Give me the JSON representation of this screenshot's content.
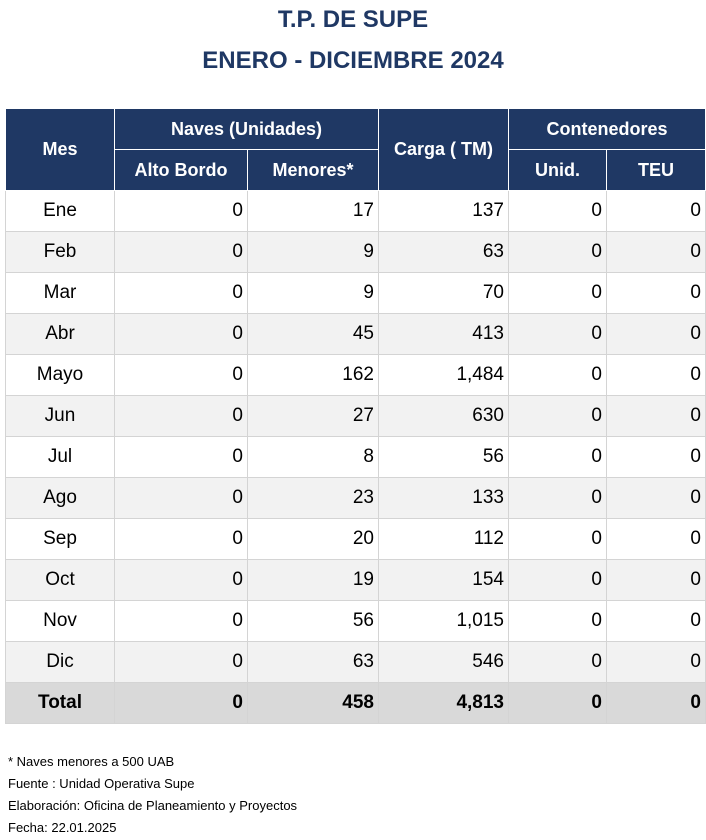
{
  "title": {
    "line1": "T.P. DE SUPE",
    "line2": "ENERO - DICIEMBRE 2024"
  },
  "headers": {
    "mes": "Mes",
    "naves": "Naves (Unidades)",
    "alto_bordo": "Alto Bordo",
    "menores": "Menores*",
    "carga": "Carga ( TM)",
    "contenedores": "Contenedores",
    "unid": "Unid.",
    "teu": "TEU"
  },
  "rows": [
    {
      "mes": "Ene",
      "alto_bordo": "0",
      "menores": "17",
      "carga": "137",
      "unid": "0",
      "teu": "0"
    },
    {
      "mes": "Feb",
      "alto_bordo": "0",
      "menores": "9",
      "carga": "63",
      "unid": "0",
      "teu": "0"
    },
    {
      "mes": "Mar",
      "alto_bordo": "0",
      "menores": "9",
      "carga": "70",
      "unid": "0",
      "teu": "0"
    },
    {
      "mes": "Abr",
      "alto_bordo": "0",
      "menores": "45",
      "carga": "413",
      "unid": "0",
      "teu": "0"
    },
    {
      "mes": "Mayo",
      "alto_bordo": "0",
      "menores": "162",
      "carga": "1,484",
      "unid": "0",
      "teu": "0"
    },
    {
      "mes": "Jun",
      "alto_bordo": "0",
      "menores": "27",
      "carga": "630",
      "unid": "0",
      "teu": "0"
    },
    {
      "mes": "Jul",
      "alto_bordo": "0",
      "menores": "8",
      "carga": "56",
      "unid": "0",
      "teu": "0"
    },
    {
      "mes": "Ago",
      "alto_bordo": "0",
      "menores": "23",
      "carga": "133",
      "unid": "0",
      "teu": "0"
    },
    {
      "mes": "Sep",
      "alto_bordo": "0",
      "menores": "20",
      "carga": "112",
      "unid": "0",
      "teu": "0"
    },
    {
      "mes": "Oct",
      "alto_bordo": "0",
      "menores": "19",
      "carga": "154",
      "unid": "0",
      "teu": "0"
    },
    {
      "mes": "Nov",
      "alto_bordo": "0",
      "menores": "56",
      "carga": "1,015",
      "unid": "0",
      "teu": "0"
    },
    {
      "mes": "Dic",
      "alto_bordo": "0",
      "menores": "63",
      "carga": "546",
      "unid": "0",
      "teu": "0"
    }
  ],
  "total": {
    "mes": "Total",
    "alto_bordo": "0",
    "menores": "458",
    "carga": "4,813",
    "unid": "0",
    "teu": "0"
  },
  "notes": {
    "note1": "* Naves menores a 500 UAB",
    "source": "Fuente : Unidad Operativa Supe",
    "elaboration": "Elaboración: Oficina de Planeamiento y Proyectos",
    "date": "Fecha: 22.01.2025"
  },
  "colors": {
    "header_bg": "#1f3864",
    "title_text": "#1f3864",
    "row_alt_bg": "#f2f2f2",
    "total_bg": "#d9d9d9"
  }
}
